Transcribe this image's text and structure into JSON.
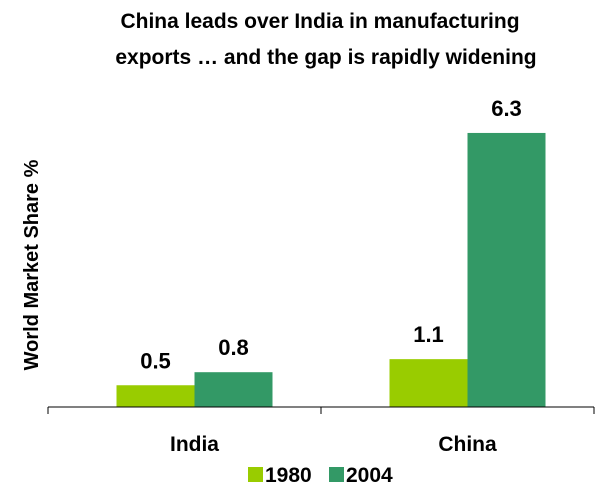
{
  "chart_data": {
    "type": "bar",
    "title_lines": [
      "China leads over India in manufacturing",
      "exports … and the gap is rapidly widening"
    ],
    "ylabel": "World Market Share %",
    "xlabel": "",
    "categories": [
      "India",
      "China"
    ],
    "series": [
      {
        "name": "1980",
        "values": [
          0.5,
          1.1
        ],
        "color": "#99cc00"
      },
      {
        "name": "2004",
        "values": [
          0.8,
          6.3
        ],
        "color": "#339966"
      }
    ],
    "ylim": [
      0,
      7
    ],
    "grid": false,
    "legend_position": "bottom-center",
    "show_data_labels": true
  }
}
